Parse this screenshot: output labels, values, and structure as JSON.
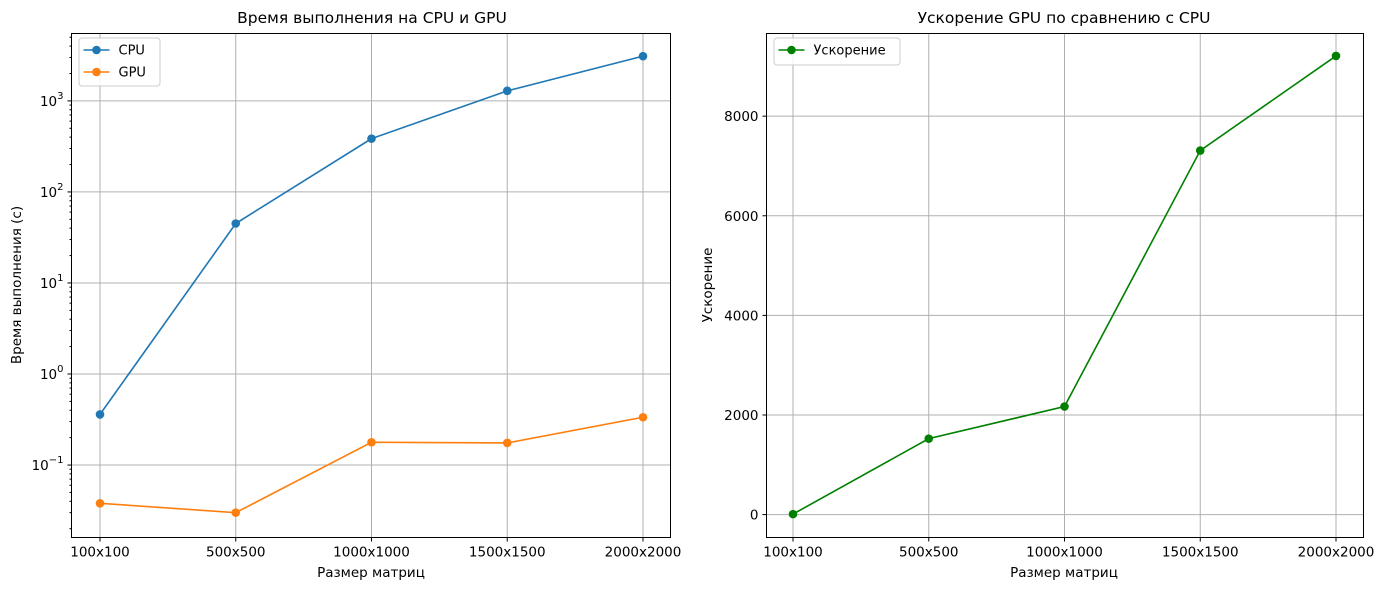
{
  "chart_data": [
    {
      "type": "line",
      "title": "Время выполнения на CPU и GPU",
      "xlabel": "Размер матриц",
      "ylabel": "Время выполнения (с)",
      "categories": [
        "100x100",
        "500x500",
        "1000x1000",
        "1500x1500",
        "2000x2000"
      ],
      "y_scale": "log",
      "ylim": [
        0.016,
        5500
      ],
      "y_ticks": [
        {
          "value": 0.1,
          "base": "10",
          "exp": "−1"
        },
        {
          "value": 1,
          "base": "10",
          "exp": "0"
        },
        {
          "value": 10,
          "base": "10",
          "exp": "1"
        },
        {
          "value": 100,
          "base": "10",
          "exp": "2"
        },
        {
          "value": 1000,
          "base": "10",
          "exp": "3"
        }
      ],
      "grid": true,
      "legend_position": "upper-left",
      "series": [
        {
          "name": "CPU",
          "color": "#1f77b4",
          "marker": "circle",
          "values": [
            0.36,
            45,
            385,
            1290,
            3100
          ]
        },
        {
          "name": "GPU",
          "color": "#ff7f0e",
          "marker": "circle",
          "values": [
            0.038,
            0.03,
            0.178,
            0.175,
            0.335
          ]
        }
      ]
    },
    {
      "type": "line",
      "title": "Ускорение GPU по сравнению с CPU",
      "xlabel": "Размер матриц",
      "ylabel": "Ускорение",
      "categories": [
        "100x100",
        "500x500",
        "1000x1000",
        "1500x1500",
        "2000x2000"
      ],
      "y_scale": "linear",
      "ylim": [
        -460,
        9660
      ],
      "y_ticks": [
        0,
        2000,
        4000,
        6000,
        8000
      ],
      "grid": true,
      "legend_position": "upper-left",
      "series": [
        {
          "name": "Ускорение",
          "color": "#008000",
          "marker": "circle",
          "values": [
            9.5,
            1525,
            2170,
            7310,
            9210
          ]
        }
      ]
    }
  ]
}
